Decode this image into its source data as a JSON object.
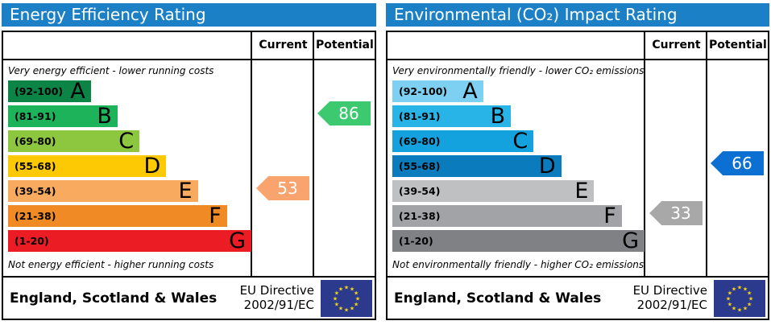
{
  "chart_data": [
    {
      "type": "bar",
      "title": "Energy Efficiency Rating",
      "orientation": "horizontal",
      "categories": [
        "A (92-100)",
        "B (81-91)",
        "C (69-80)",
        "D (55-68)",
        "E (39-54)",
        "F (21-38)",
        "G (1-20)"
      ],
      "values": [
        34,
        45,
        54,
        65,
        78,
        90,
        100
      ],
      "markers": {
        "current": 53,
        "current_band": "E",
        "potential": 86,
        "potential_band": "B"
      },
      "columns": [
        "Current",
        "Potential"
      ],
      "top_label": "Very energy efficient - lower running costs",
      "bottom_label": "Not energy efficient - higher running costs"
    },
    {
      "type": "bar",
      "title": "Environmental (CO₂) Impact Rating",
      "orientation": "horizontal",
      "categories": [
        "A (92-100)",
        "B (81-91)",
        "C (69-80)",
        "D (55-68)",
        "E (39-54)",
        "F (21-38)",
        "G (1-20)"
      ],
      "values": [
        36,
        47,
        56,
        67,
        80,
        91,
        100
      ],
      "markers": {
        "current": 33,
        "current_band": "F",
        "potential": 66,
        "potential_band": "D"
      },
      "columns": [
        "Current",
        "Potential"
      ],
      "top_label": "Very environmentally friendly - lower CO₂ emissions",
      "bottom_label": "Not environmentally friendly - higher CO₂ emissions"
    }
  ],
  "title_bar_color": "#1c80c6",
  "panels": [
    {
      "title": "Energy Efficiency Rating",
      "header": {
        "current": "Current",
        "potential": "Potential"
      },
      "top_note": "Very energy efficient - lower running costs",
      "bottom_note": "Not energy efficient - higher running costs",
      "bands": [
        {
          "range": "(92-100)",
          "letter": "A",
          "color": "#0b8446",
          "width_pct": 34
        },
        {
          "range": "(81-91)",
          "letter": "B",
          "color": "#1db35b",
          "width_pct": 45
        },
        {
          "range": "(69-80)",
          "letter": "C",
          "color": "#8dc63f",
          "width_pct": 54
        },
        {
          "range": "(55-68)",
          "letter": "D",
          "color": "#fdc804",
          "width_pct": 65
        },
        {
          "range": "(39-54)",
          "letter": "E",
          "color": "#f8aa5f",
          "width_pct": 78
        },
        {
          "range": "(21-38)",
          "letter": "F",
          "color": "#f08a24",
          "width_pct": 90
        },
        {
          "range": "(1-20)",
          "letter": "G",
          "color": "#ec1c24",
          "width_pct": 100
        }
      ],
      "current": {
        "label": "53",
        "band_index": 4,
        "color": "#f9a36e"
      },
      "potential": {
        "label": "86",
        "band_index": 1,
        "color": "#3dc96f"
      },
      "footer": {
        "region": "England, Scotland & Wales",
        "directive_line1": "EU Directive",
        "directive_line2": "2002/91/EC"
      }
    },
    {
      "title": "Environmental (CO₂) Impact Rating",
      "header": {
        "current": "Current",
        "potential": "Potential"
      },
      "top_note": "Very environmentally friendly - lower CO₂ emissions",
      "bottom_note": "Not environmentally friendly - higher CO₂ emissions",
      "bands": [
        {
          "range": "(92-100)",
          "letter": "A",
          "color": "#7ed0f3",
          "width_pct": 36
        },
        {
          "range": "(81-91)",
          "letter": "B",
          "color": "#29b4e8",
          "width_pct": 47
        },
        {
          "range": "(69-80)",
          "letter": "C",
          "color": "#14a2de",
          "width_pct": 56
        },
        {
          "range": "(55-68)",
          "letter": "D",
          "color": "#0a7cbe",
          "width_pct": 67
        },
        {
          "range": "(39-54)",
          "letter": "E",
          "color": "#bfc0c2",
          "width_pct": 80
        },
        {
          "range": "(21-38)",
          "letter": "F",
          "color": "#a1a3a6",
          "width_pct": 91
        },
        {
          "range": "(1-20)",
          "letter": "G",
          "color": "#7f8184",
          "width_pct": 100
        }
      ],
      "current": {
        "label": "33",
        "band_index": 5,
        "color": "#a8a8a8"
      },
      "potential": {
        "label": "66",
        "band_index": 3,
        "color": "#0b70d1"
      },
      "footer": {
        "region": "England, Scotland & Wales",
        "directive_line1": "EU Directive",
        "directive_line2": "2002/91/EC"
      }
    }
  ],
  "eu_flag": {
    "background": "#2b3a8c",
    "star_color": "#f8d413"
  }
}
